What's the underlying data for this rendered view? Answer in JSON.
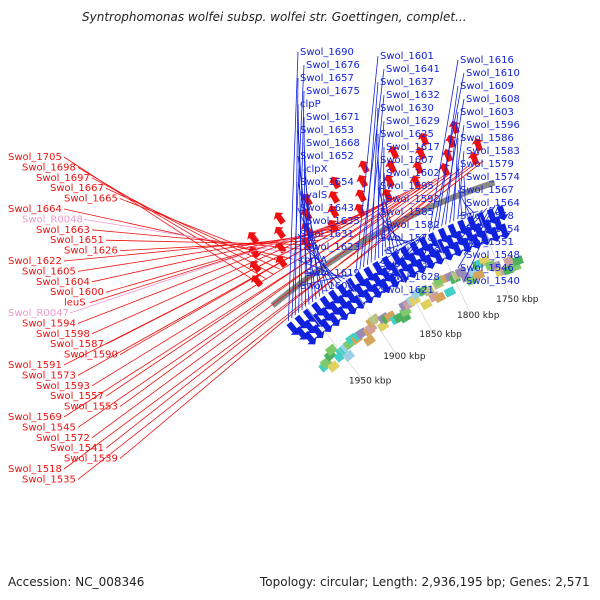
{
  "title": "Syntrophomonas wolfei subsp. wolfei str. Goettingen, complet...",
  "footer": {
    "accession": "Accession: NC_008346",
    "stats": "Topology: circular; Length: 2,936,195 bp; Genes: 2,571"
  },
  "colors": {
    "forward": "#ee1111",
    "reverse": "#1122dd",
    "rna": "#ee99cc",
    "backbone": "#888888"
  },
  "ticks": [
    "1950 kbp",
    "1900 kbp",
    "1850 kbp",
    "1800 kbp",
    "1750 kbp"
  ],
  "forward_genes": [
    "Swol_1705",
    "Swol_1698",
    "Swol_1697",
    "Swol_1667",
    "Swol_1665",
    "Swol_1664",
    "Swol_R0048",
    "Swol_1663",
    "Swol_1651",
    "Swol_1626",
    "Swol_1622",
    "Swol_1605",
    "Swol_1604",
    "Swol_1600",
    "leuS",
    "Swol_R0047",
    "Swol_1594",
    "Swol_1598",
    "Swol_1587",
    "Swol_1590",
    "Swol_1591",
    "Swol_1573",
    "Swol_1593",
    "Swol_1557",
    "Swol_1553",
    "Swol_1569",
    "Swol_1545",
    "Swol_1572",
    "Swol_1541",
    "Swol_1539",
    "Swol_1518",
    "Swol_1535"
  ],
  "reverse_genes": [
    "Swol_1690",
    "Swol_1676",
    "Swol_1657",
    "Swol_1675",
    "clpP",
    "Swol_1671",
    "Swol_1653",
    "Swol_1668",
    "Swol_1652",
    "clpX",
    "Swol_1654",
    "valS",
    "Swol_1643",
    "Swol_1635",
    "Swol_1631",
    "Swol_1623",
    "rpmA",
    "Swol_1619",
    "Swol_1606",
    "Swol_1601",
    "Swol_1641",
    "Swol_1637",
    "Swol_1632",
    "Swol_1630",
    "Swol_1629",
    "Swol_1625",
    "Swol_1617",
    "Swol_1607",
    "Swol_1602",
    "Swol_1595",
    "Swol_1592",
    "Swol_1585",
    "Swol_1582",
    "Swol_1578",
    "Swol_1576",
    "Swol_1633",
    "Swol_1628",
    "Swol_1621",
    "Swol_1616",
    "Swol_1610",
    "Swol_1609",
    "Swol_1608",
    "Swol_1603",
    "Swol_1596",
    "Swol_1586",
    "Swol_1583",
    "Swol_1579",
    "Swol_1574",
    "Swol_1567",
    "Swol_1564",
    "Swol_1558",
    "Swol_1554",
    "Swol_1551",
    "Swol_1548",
    "Swol_1546",
    "Swol_1540"
  ]
}
